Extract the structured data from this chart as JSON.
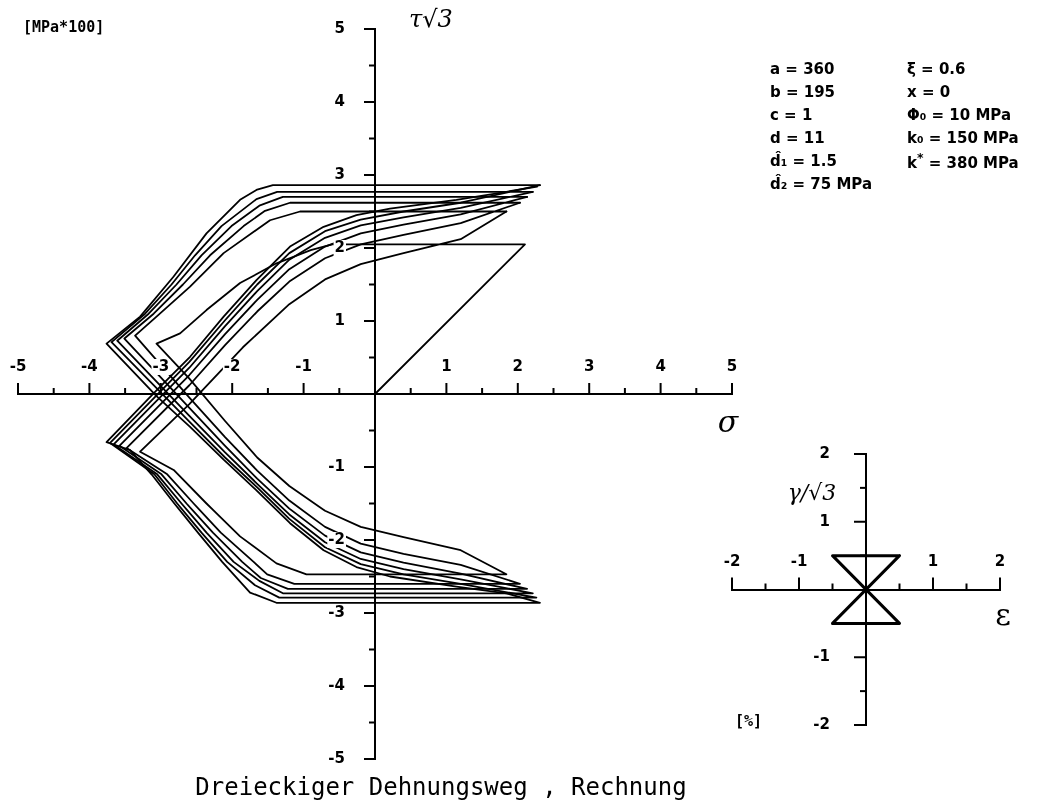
{
  "chart_data": [
    {
      "type": "line",
      "title": "Dreieckiger Dehnungsweg , Rechnung",
      "xlabel": "σ",
      "ylabel": "τ√3",
      "annotations": [
        "[MPa*100]",
        "a = 360",
        "b = 195",
        "c = 1",
        "d = 11",
        "d̂₁ = 1.5",
        "d̂₂ = 75 MPa",
        "ξ = 0.6",
        "x = 0",
        "Φ₀ = 10 MPa",
        "k₀ = 150 MPa",
        "k$^{*}$ = 380 MPa"
      ],
      "xlim": [
        -5,
        5
      ],
      "ylim": [
        -5,
        5
      ],
      "xticks": [
        -5,
        {
          "value": -4.5,
          "label": null
        },
        -4,
        {
          "value": -3.5,
          "label": null
        },
        -3,
        {
          "value": -2.5,
          "label": null
        },
        -2,
        {
          "value": -1.5,
          "label": null
        },
        -1,
        {
          "value": -0.5,
          "label": null
        },
        {
          "value": 0.5,
          "label": null
        },
        1,
        {
          "value": 1.5,
          "label": null
        },
        2,
        {
          "value": 2.5,
          "label": null
        },
        3,
        {
          "value": 3.5,
          "label": null
        },
        4,
        {
          "value": 4.5,
          "label": null
        },
        5
      ],
      "yticks": [
        -5,
        {
          "value": -4.5,
          "label": null
        },
        -4,
        {
          "value": -3.5,
          "label": null
        },
        -3,
        {
          "value": -2.5,
          "label": null
        },
        -2,
        {
          "value": -1.5,
          "label": null
        },
        -1,
        {
          "value": -0.5,
          "label": null
        },
        {
          "value": 0.5,
          "label": null
        },
        1,
        {
          "value": 1.5,
          "label": null
        },
        2,
        {
          "value": 2.5,
          "label": null
        },
        3,
        {
          "value": 3.5,
          "label": null
        },
        4,
        {
          "value": 4.5,
          "label": null
        },
        5
      ],
      "series": [
        {
          "color": "#000000",
          "x": [
            0,
            2.1,
            -0.6,
            -0.9,
            -1.38,
            -1.89,
            -2.36,
            -2.73,
            -3.06,
            -2.6,
            -2.1,
            -1.65,
            -1.2,
            -0.7,
            -0.2,
            0.4,
            1.2,
            1.84,
            -0.96,
            -1.38,
            -1.89,
            -2.36,
            -2.82,
            -3.29,
            -2.6,
            -1.85,
            -1.2,
            -0.7,
            -0.2,
            0.4,
            1.2,
            1.84
          ],
          "values": [
            0,
            2.05,
            2.05,
            1.97,
            1.79,
            1.52,
            1.15,
            0.83,
            0.69,
            0.21,
            -0.37,
            -0.87,
            -1.26,
            -1.6,
            -1.82,
            -1.96,
            -2.14,
            -2.47,
            -2.47,
            -2.32,
            -1.95,
            -1.5,
            -1.04,
            -0.79,
            -0.14,
            0.64,
            1.23,
            1.57,
            1.78,
            1.93,
            2.12,
            2.5
          ]
        },
        {
          "color": "#000000",
          "x": [
            1.84,
            -1.05,
            -1.47,
            -2.12,
            -2.59,
            -3.06,
            -3.36,
            -2.6,
            -2.1,
            -1.65,
            -1.2,
            -0.7,
            -0.2,
            0.4,
            1.2,
            2.03,
            -1.13,
            -1.51,
            -1.7,
            -2.16,
            -2.54,
            -2.91,
            -3.48,
            -2.6,
            -2.1,
            -1.65,
            -1.2,
            -0.7,
            -0.2,
            0.4,
            1.2,
            2.03
          ],
          "values": [
            2.5,
            2.5,
            2.38,
            1.93,
            1.47,
            1.06,
            0.8,
            -0.05,
            -0.59,
            -1.05,
            -1.46,
            -1.82,
            -2.05,
            -2.19,
            -2.34,
            -2.6,
            -2.6,
            -2.47,
            -2.3,
            -1.9,
            -1.5,
            -1.1,
            -0.74,
            0.12,
            0.67,
            1.13,
            1.54,
            1.86,
            2.05,
            2.18,
            2.34,
            2.62
          ]
        },
        {
          "color": "#000000",
          "x": [
            2.03,
            -1.19,
            -1.54,
            -1.84,
            -2.31,
            -2.69,
            -3.1,
            -3.51,
            -2.6,
            -2.1,
            -1.65,
            -1.2,
            -0.7,
            -0.2,
            0.4,
            1.2,
            2.13,
            -1.22,
            -1.6,
            -1.86,
            -2.27,
            -2.64,
            -2.99,
            -3.58,
            -2.6,
            -2.1,
            -1.65,
            -1.2,
            -0.7,
            -0.2,
            0.4,
            1.2,
            2.13
          ],
          "values": [
            2.62,
            2.62,
            2.51,
            2.3,
            1.9,
            1.5,
            1.1,
            0.76,
            -0.19,
            -0.71,
            -1.16,
            -1.57,
            -1.94,
            -2.17,
            -2.31,
            -2.46,
            -2.67,
            -2.67,
            -2.52,
            -2.3,
            -1.9,
            -1.5,
            -1.1,
            -0.71,
            0.26,
            0.82,
            1.29,
            1.71,
            2.02,
            2.2,
            2.32,
            2.46,
            2.7
          ]
        },
        {
          "color": "#000000",
          "x": [
            2.13,
            -1.29,
            -1.62,
            -2.01,
            -2.43,
            -2.78,
            -3.17,
            -3.61,
            -2.6,
            -2.1,
            -1.65,
            -1.2,
            -0.7,
            -0.2,
            0.4,
            1.2,
            2.21,
            -1.29,
            -1.62,
            -1.98,
            -2.36,
            -2.71,
            -3.05,
            -3.66,
            -2.6,
            -2.1,
            -1.65,
            -1.2,
            -0.7,
            -0.2,
            0.4,
            1.2,
            2.21
          ],
          "values": [
            2.7,
            2.7,
            2.58,
            2.3,
            1.9,
            1.5,
            1.1,
            0.73,
            -0.3,
            -0.8,
            -1.23,
            -1.65,
            -2.03,
            -2.26,
            -2.4,
            -2.54,
            -2.73,
            -2.73,
            -2.56,
            -2.3,
            -1.9,
            -1.5,
            -1.1,
            -0.69,
            0.36,
            0.93,
            1.41,
            1.84,
            2.14,
            2.31,
            2.42,
            2.55,
            2.77
          ]
        },
        {
          "color": "#000000",
          "x": [
            2.21,
            -1.37,
            -1.66,
            -2.15,
            -2.52,
            -2.85,
            -3.22,
            -3.69,
            -2.6,
            -2.1,
            -1.65,
            -1.2,
            -0.7,
            -0.2,
            0.4,
            1.2,
            2.26,
            -1.34,
            -1.68,
            -2.07,
            -2.43,
            -2.77,
            -3.09,
            -3.71,
            -2.6,
            -2.1,
            -1.65,
            -1.2,
            -0.7,
            -0.2,
            0.4,
            1.2,
            2.31
          ],
          "values": [
            2.77,
            2.77,
            2.67,
            2.3,
            1.9,
            1.5,
            1.1,
            0.71,
            -0.38,
            -0.87,
            -1.28,
            -1.71,
            -2.1,
            -2.33,
            -2.47,
            -2.6,
            -2.79,
            -2.79,
            -2.62,
            -2.3,
            -1.9,
            -1.5,
            -1.1,
            -0.67,
            0.44,
            1.01,
            1.5,
            1.93,
            2.23,
            2.39,
            2.5,
            2.62,
            2.86
          ]
        },
        {
          "color": "#000000",
          "x": [
            2.31,
            -1.43,
            -1.65,
            -1.89,
            -2.36,
            -2.82,
            -3.29,
            -3.76,
            -3.06,
            -2.59,
            -2.12,
            -1.66,
            -1.19,
            -0.72,
            -0.26,
            0.21,
            1.14,
            1.84,
            2.31,
            -1.38,
            -1.75,
            -2.14,
            -2.48,
            -2.81,
            -3.13,
            -3.43,
            -3.76,
            -3.06,
            -2.59,
            -2.12,
            -1.66,
            -1.19,
            -0.72,
            -0.26,
            0.21,
            1.14,
            1.84,
            2.27
          ],
          "values": [
            2.86,
            2.86,
            2.8,
            2.66,
            2.2,
            1.61,
            1.06,
            0.69,
            -0.03,
            -0.45,
            -0.9,
            -1.32,
            -1.77,
            -2.14,
            -2.37,
            -2.5,
            -2.64,
            -2.73,
            -2.86,
            -2.86,
            -2.72,
            -2.3,
            -1.9,
            -1.5,
            -1.1,
            -0.77,
            -0.66,
            0.05,
            0.51,
            1.06,
            1.56,
            2.02,
            2.29,
            2.45,
            2.54,
            2.66,
            2.77,
            2.84
          ]
        }
      ]
    },
    {
      "type": "line",
      "xlabel": "ε",
      "ylabel": "γ/√3",
      "annotations": [
        "[%]"
      ],
      "xlim": [
        -2,
        2
      ],
      "ylim": [
        -2,
        2
      ],
      "xticks": [
        -2,
        {
          "value": -1.5,
          "label": null
        },
        -1,
        {
          "value": -0.5,
          "label": null
        },
        {
          "value": 0.5,
          "label": null
        },
        1,
        {
          "value": 1.5,
          "label": null
        },
        2
      ],
      "yticks": [
        -2,
        {
          "value": -1.5,
          "label": null
        },
        -1,
        {
          "value": -0.5,
          "label": null
        },
        {
          "value": 0.5,
          "label": null
        },
        1,
        {
          "value": 1.5,
          "label": null
        },
        2
      ],
      "series": [
        {
          "color": "#000000",
          "x": [
            0,
            0.5,
            -0.5,
            0.5,
            -0.5,
            0.5
          ],
          "values": [
            0,
            0.5,
            0.5,
            -0.5,
            -0.5,
            0.5
          ]
        }
      ]
    }
  ]
}
